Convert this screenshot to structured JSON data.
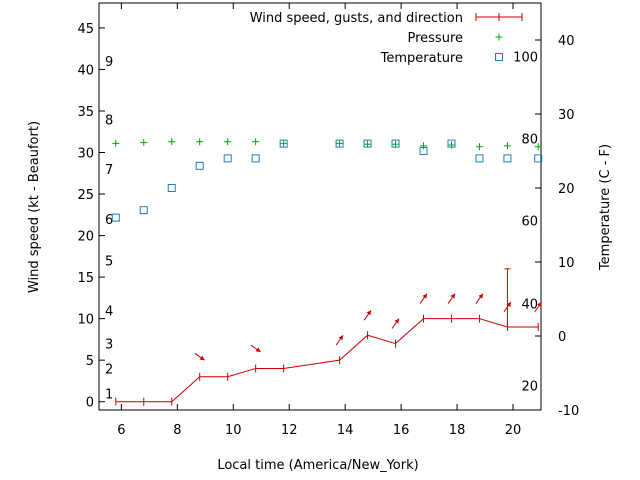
{
  "chart_data": {
    "type": "line",
    "xlabel": "Local time (America/New_York)",
    "ylabel": "Wind speed (kt - Beaufort)",
    "y2label": "Temperature (C - F)",
    "xlim": [
      5.2,
      21.0
    ],
    "ylim": [
      -1,
      48
    ],
    "y2lim": [
      -10,
      45
    ],
    "x_ticks": [
      6,
      8,
      10,
      12,
      14,
      16,
      18,
      20
    ],
    "y_ticks": [
      0,
      5,
      10,
      15,
      20,
      25,
      30,
      35,
      40,
      45
    ],
    "y2_ticks": [
      -10,
      0,
      10,
      20,
      30,
      40
    ],
    "beaufort_labels": [
      {
        "label": "1",
        "value": 1
      },
      {
        "label": "2",
        "value": 4
      },
      {
        "label": "3",
        "value": 7
      },
      {
        "label": "4",
        "value": 11
      },
      {
        "label": "5",
        "value": 17
      },
      {
        "label": "6",
        "value": 22
      },
      {
        "label": "7",
        "value": 28
      },
      {
        "label": "8",
        "value": 34
      },
      {
        "label": "9",
        "value": 41
      }
    ],
    "fahrenheit_labels": [
      {
        "label": "20",
        "temp_c": -6.7
      },
      {
        "label": "40",
        "temp_c": 4.4
      },
      {
        "label": "60",
        "temp_c": 15.6
      },
      {
        "label": "80",
        "temp_c": 26.7
      },
      {
        "label": "100",
        "temp_c": 37.8
      }
    ],
    "legend_position": "top-right",
    "series": [
      {
        "name": "Wind speed, gusts, and direction",
        "color": "#cc0000",
        "x": [
          5.8,
          6.8,
          7.8,
          8.8,
          9.8,
          10.8,
          11.8,
          13.8,
          14.8,
          15.8,
          16.8,
          17.8,
          18.8,
          19.8,
          20.9
        ],
        "y": [
          0,
          0,
          0,
          3,
          3,
          4,
          4,
          5,
          8,
          7,
          10,
          10,
          10,
          9,
          9
        ],
        "gusts": [
          {
            "x": 19.8,
            "y": 16
          }
        ],
        "arrows": [
          {
            "x": 8.8,
            "dir": "SE"
          },
          {
            "x": 10.8,
            "dir": "SE"
          },
          {
            "x": 13.8,
            "dir": "NE"
          },
          {
            "x": 14.8,
            "dir": "NE"
          },
          {
            "x": 15.8,
            "dir": "NE"
          },
          {
            "x": 16.8,
            "dir": "NE"
          },
          {
            "x": 17.8,
            "dir": "NE"
          },
          {
            "x": 18.8,
            "dir": "NE"
          },
          {
            "x": 19.8,
            "dir": "NE"
          },
          {
            "x": 20.9,
            "dir": "NE"
          }
        ]
      },
      {
        "name": "Pressure",
        "color": "#00aa00",
        "marker": "plus",
        "x": [
          5.8,
          6.8,
          7.8,
          8.8,
          9.8,
          10.8,
          11.8,
          13.8,
          14.8,
          15.8,
          16.8,
          17.8,
          18.8,
          19.8,
          20.9
        ],
        "y": [
          31.1,
          31.2,
          31.3,
          31.3,
          31.3,
          31.3,
          31.1,
          31.1,
          31.0,
          31.0,
          30.8,
          30.9,
          30.7,
          30.8,
          30.7
        ]
      },
      {
        "name": "Temperature",
        "color": "#1a7fbf",
        "marker": "square",
        "x": [
          5.8,
          6.8,
          7.8,
          8.8,
          9.8,
          10.8,
          11.8,
          13.8,
          14.8,
          15.8,
          16.8,
          17.8,
          18.8,
          19.8,
          20.9
        ],
        "y": [
          16,
          17,
          20,
          23,
          24,
          24,
          26,
          26,
          26,
          26,
          25,
          26,
          24,
          24,
          24
        ]
      }
    ]
  }
}
